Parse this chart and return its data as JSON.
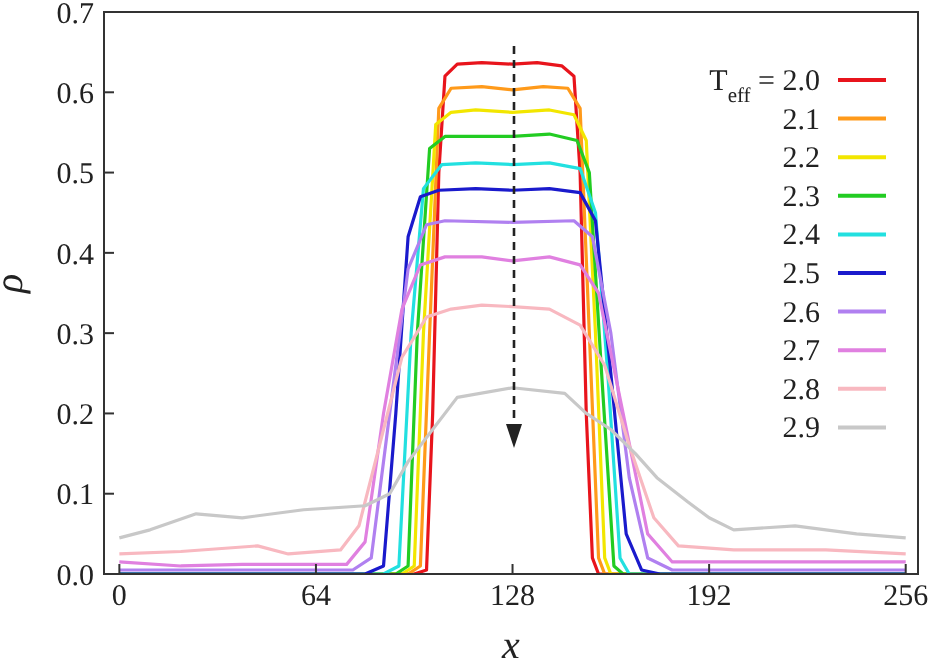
{
  "chart_data": {
    "type": "line",
    "xlabel": "x",
    "ylabel": "ρ",
    "xlim": [
      -5,
      260
    ],
    "xticks": [
      0,
      64,
      128,
      192,
      256
    ],
    "ylim": [
      0,
      0.7
    ],
    "yticks": [
      {
        "value": 0,
        "label": "0.0"
      },
      {
        "value": 0.1,
        "label": "0.1"
      },
      {
        "value": 0.2,
        "label": "0.2"
      },
      {
        "value": 0.3,
        "label": "0.3"
      },
      {
        "value": 0.4,
        "label": "0.4"
      },
      {
        "value": 0.5,
        "label": "0.5"
      },
      {
        "value": 0.6,
        "label": "0.6"
      },
      {
        "value": 0.7,
        "label": "0.7"
      }
    ],
    "grid": false,
    "legend": "top right",
    "marker": "none",
    "line_style": "solid",
    "series": [
      {
        "name": "T$_{eff}$ = 2.0",
        "color": "#e8141c",
        "x": [
          0,
          96,
          100,
          102,
          104,
          106,
          110,
          118,
          128,
          136,
          144,
          148,
          150,
          152,
          154,
          156,
          256
        ],
        "values": [
          0,
          0,
          0.005,
          0.2,
          0.5,
          0.62,
          0.635,
          0.637,
          0.635,
          0.637,
          0.633,
          0.62,
          0.5,
          0.2,
          0.02,
          0,
          0
        ]
      },
      {
        "name": "2.1",
        "color": "#ff9a1a",
        "x": [
          0,
          94,
          98,
          101,
          104,
          108,
          118,
          128,
          138,
          146,
          150,
          153,
          156,
          158,
          256
        ],
        "values": [
          0,
          0,
          0.01,
          0.3,
          0.58,
          0.605,
          0.607,
          0.603,
          0.607,
          0.605,
          0.58,
          0.3,
          0.02,
          0,
          0
        ]
      },
      {
        "name": "2.2",
        "color": "#f2e600",
        "x": [
          0,
          92,
          96,
          99,
          103,
          108,
          116,
          128,
          140,
          148,
          152,
          155,
          158,
          160,
          256
        ],
        "values": [
          0,
          0,
          0.01,
          0.3,
          0.56,
          0.575,
          0.578,
          0.575,
          0.578,
          0.572,
          0.54,
          0.3,
          0.02,
          0,
          0
        ]
      },
      {
        "name": "2.3",
        "color": "#22cc22",
        "x": [
          0,
          90,
          94,
          97,
          101,
          106,
          114,
          128,
          140,
          149,
          153,
          157,
          161,
          164,
          256
        ],
        "values": [
          0,
          0,
          0.01,
          0.3,
          0.53,
          0.545,
          0.545,
          0.545,
          0.548,
          0.54,
          0.5,
          0.25,
          0.01,
          0,
          0
        ]
      },
      {
        "name": "2.4",
        "color": "#22e0e0",
        "x": [
          0,
          86,
          91,
          95,
          99,
          105,
          116,
          128,
          140,
          150,
          155,
          159,
          163,
          166,
          256
        ],
        "values": [
          0,
          0,
          0.01,
          0.3,
          0.48,
          0.51,
          0.512,
          0.51,
          0.512,
          0.505,
          0.45,
          0.25,
          0.02,
          0,
          0
        ]
      },
      {
        "name": "2.5",
        "color": "#1a1acc",
        "x": [
          0,
          80,
          86,
          90,
          94,
          98,
          104,
          116,
          128,
          140,
          150,
          155,
          160,
          165,
          170,
          176,
          256
        ],
        "values": [
          0,
          0,
          0.01,
          0.2,
          0.42,
          0.47,
          0.478,
          0.48,
          0.478,
          0.48,
          0.475,
          0.44,
          0.25,
          0.05,
          0.005,
          0,
          0
        ]
      },
      {
        "name": "2.6",
        "color": "#b080f0",
        "x": [
          0,
          40,
          76,
          82,
          88,
          94,
          100,
          106,
          128,
          148,
          154,
          160,
          166,
          172,
          180,
          256
        ],
        "values": [
          0.005,
          0.005,
          0.005,
          0.02,
          0.2,
          0.38,
          0.435,
          0.44,
          0.438,
          0.44,
          0.42,
          0.3,
          0.12,
          0.02,
          0.005,
          0.005
        ]
      },
      {
        "name": "2.7",
        "color": "#e080e0",
        "x": [
          0,
          20,
          40,
          74,
          80,
          86,
          92,
          98,
          106,
          118,
          128,
          140,
          150,
          156,
          164,
          172,
          180,
          256
        ],
        "values": [
          0.015,
          0.01,
          0.012,
          0.012,
          0.04,
          0.2,
          0.33,
          0.385,
          0.395,
          0.395,
          0.39,
          0.395,
          0.385,
          0.35,
          0.2,
          0.05,
          0.015,
          0.015
        ]
      },
      {
        "name": "2.8",
        "color": "#f8b8c0",
        "x": [
          0,
          20,
          45,
          55,
          72,
          78,
          84,
          92,
          100,
          108,
          118,
          128,
          140,
          150,
          158,
          166,
          174,
          182,
          200,
          230,
          256
        ],
        "values": [
          0.025,
          0.028,
          0.035,
          0.025,
          0.03,
          0.06,
          0.15,
          0.27,
          0.32,
          0.33,
          0.335,
          0.333,
          0.33,
          0.31,
          0.26,
          0.16,
          0.07,
          0.035,
          0.03,
          0.03,
          0.025
        ]
      },
      {
        "name": "2.9",
        "color": "#c8c8c8",
        "x": [
          0,
          10,
          25,
          40,
          60,
          80,
          88,
          94,
          100,
          110,
          128,
          145,
          152,
          160,
          168,
          175,
          185,
          192,
          200,
          220,
          240,
          256
        ],
        "values": [
          0.045,
          0.055,
          0.075,
          0.07,
          0.08,
          0.085,
          0.1,
          0.14,
          0.17,
          0.22,
          0.232,
          0.225,
          0.2,
          0.18,
          0.15,
          0.12,
          0.09,
          0.07,
          0.055,
          0.06,
          0.05,
          0.045
        ]
      }
    ]
  }
}
